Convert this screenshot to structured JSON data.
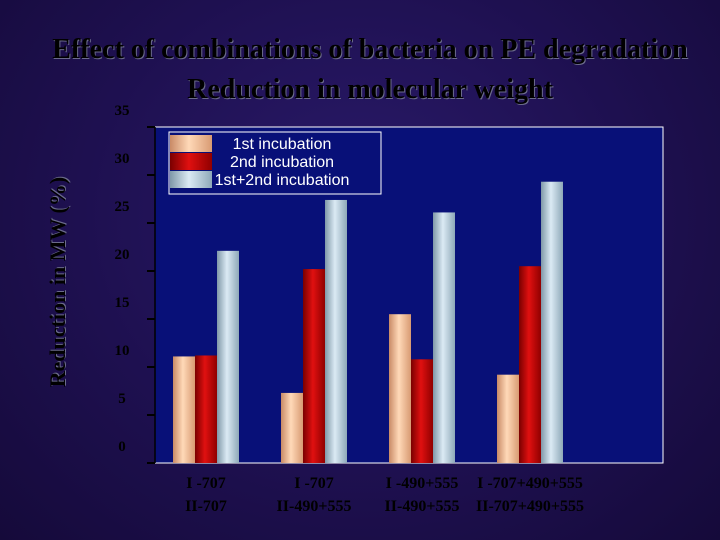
{
  "chart_data": {
    "type": "bar",
    "title_line1": "Effect of combinations of bacteria on PE degradation",
    "title_line2": "Reduction in molecular weight",
    "ylabel": "Reduction in  MW (%)",
    "ylim": [
      0,
      35
    ],
    "yticks": [
      0,
      5,
      10,
      15,
      20,
      25,
      30,
      35
    ],
    "categories": [
      [
        "I -707",
        "II-707"
      ],
      [
        "I -707",
        "II-490+555"
      ],
      [
        "I -490+555",
        "II-490+555"
      ],
      [
        "I -707+490+555",
        "II-707+490+555"
      ]
    ],
    "series": [
      {
        "name": "1st incubation",
        "values": [
          11.1,
          7.3,
          15.5,
          9.2
        ]
      },
      {
        "name": "2nd incubation",
        "values": [
          11.2,
          20.2,
          10.8,
          20.5
        ]
      },
      {
        "name": "1st+2nd incubation",
        "values": [
          22.1,
          27.4,
          26.1,
          29.3
        ]
      }
    ],
    "colors": {
      "series": [
        "#f0b98f",
        "#c00000",
        "#b0c8d8"
      ],
      "plot_bg": "#081078",
      "axis": "#ffffff"
    },
    "legend_position": "top-left",
    "grid": false
  }
}
